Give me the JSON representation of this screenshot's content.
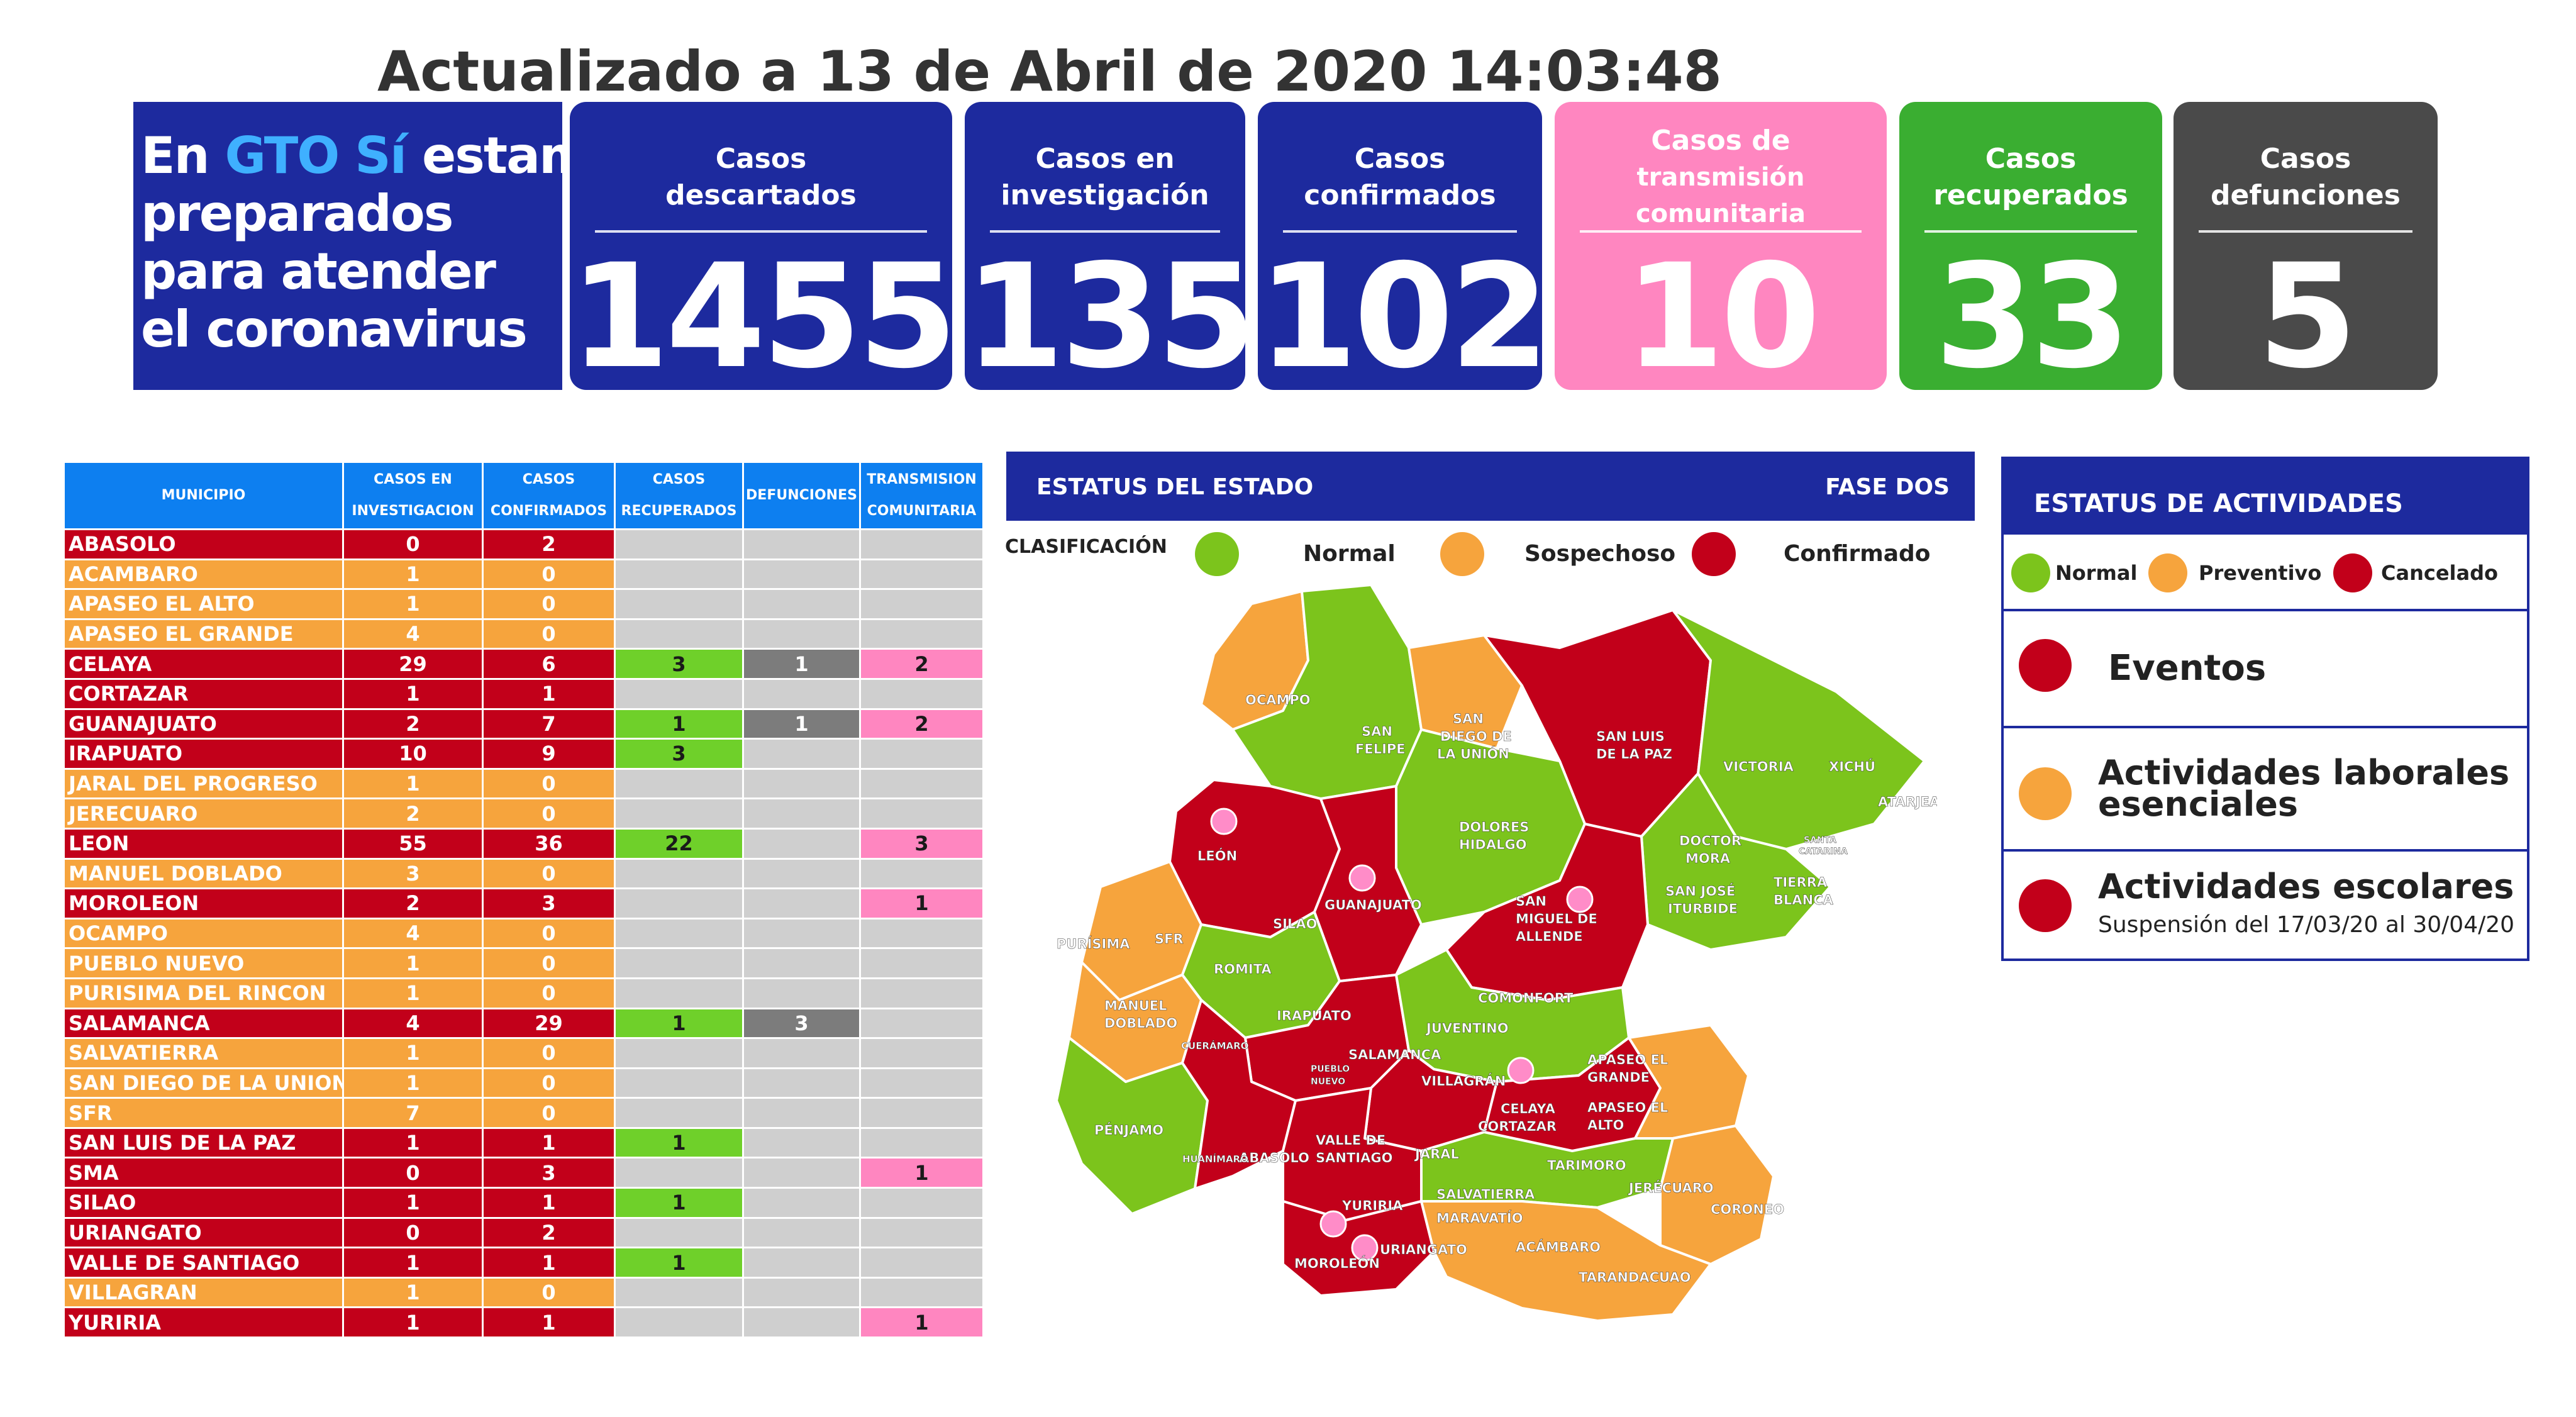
{
  "header": {
    "updated": "Actualizado a 13 de Abril de 2020 14:03:48"
  },
  "slogan": {
    "line1a": "En ",
    "line1b": "GTO Sí",
    "line1c": " estamos",
    "line2": "preparados",
    "line3": "para atender",
    "line4": "el coronavirus"
  },
  "colors": {
    "navy": "#1d2a9e",
    "pink": "#ff86c0",
    "green": "#3aae31",
    "dark": "#4a4a4a",
    "red": "#c2001a",
    "orange": "#f6a43d",
    "lightgreen": "#7cc41c"
  },
  "cards": [
    {
      "label1": "Casos",
      "label2": "descartados",
      "value": "1455"
    },
    {
      "label1": "Casos en",
      "label2": "investigación",
      "value": "135"
    },
    {
      "label1": "Casos",
      "label2": "confirmados",
      "value": "102"
    },
    {
      "label1": "Casos de",
      "label2": "transmisión comunitaria",
      "value": "10"
    },
    {
      "label1": "Casos",
      "label2": "recuperados",
      "value": "33"
    },
    {
      "label1": "Casos",
      "label2": "defunciones",
      "value": "5"
    }
  ],
  "table": {
    "headers": {
      "municipio": "MUNICIPIO",
      "inv1": "CASOS EN",
      "inv2": "INVESTIGACION",
      "conf1": "CASOS",
      "conf2": "CONFIRMADOS",
      "rec1": "CASOS",
      "rec2": "RECUPERADOS",
      "def": "DEFUNCIONES",
      "tra1": "TRANSMISION",
      "tra2": "COMUNITARIA"
    },
    "rows": [
      {
        "mun": "ABASOLO",
        "inv": "0",
        "conf": "2",
        "rec": "",
        "def": "",
        "tra": "",
        "status": "red"
      },
      {
        "mun": "ACAMBARO",
        "inv": "1",
        "conf": "0",
        "rec": "",
        "def": "",
        "tra": "",
        "status": "orange"
      },
      {
        "mun": "APASEO EL ALTO",
        "inv": "1",
        "conf": "0",
        "rec": "",
        "def": "",
        "tra": "",
        "status": "orange"
      },
      {
        "mun": "APASEO EL GRANDE",
        "inv": "4",
        "conf": "0",
        "rec": "",
        "def": "",
        "tra": "",
        "status": "orange"
      },
      {
        "mun": "CELAYA",
        "inv": "29",
        "conf": "6",
        "rec": "3",
        "def": "1",
        "tra": "2",
        "status": "red"
      },
      {
        "mun": "CORTAZAR",
        "inv": "1",
        "conf": "1",
        "rec": "",
        "def": "",
        "tra": "",
        "status": "red"
      },
      {
        "mun": "GUANAJUATO",
        "inv": "2",
        "conf": "7",
        "rec": "1",
        "def": "1",
        "tra": "2",
        "status": "red"
      },
      {
        "mun": "IRAPUATO",
        "inv": "10",
        "conf": "9",
        "rec": "3",
        "def": "",
        "tra": "",
        "status": "red"
      },
      {
        "mun": "JARAL DEL PROGRESO",
        "inv": "1",
        "conf": "0",
        "rec": "",
        "def": "",
        "tra": "",
        "status": "orange"
      },
      {
        "mun": "JERECUARO",
        "inv": "2",
        "conf": "0",
        "rec": "",
        "def": "",
        "tra": "",
        "status": "orange"
      },
      {
        "mun": "LEON",
        "inv": "55",
        "conf": "36",
        "rec": "22",
        "def": "",
        "tra": "3",
        "status": "red"
      },
      {
        "mun": "MANUEL DOBLADO",
        "inv": "3",
        "conf": "0",
        "rec": "",
        "def": "",
        "tra": "",
        "status": "orange"
      },
      {
        "mun": "MOROLEON",
        "inv": "2",
        "conf": "3",
        "rec": "",
        "def": "",
        "tra": "1",
        "status": "red"
      },
      {
        "mun": "OCAMPO",
        "inv": "4",
        "conf": "0",
        "rec": "",
        "def": "",
        "tra": "",
        "status": "orange"
      },
      {
        "mun": "PUEBLO NUEVO",
        "inv": "1",
        "conf": "0",
        "rec": "",
        "def": "",
        "tra": "",
        "status": "orange"
      },
      {
        "mun": "PURISIMA DEL RINCON",
        "inv": "1",
        "conf": "0",
        "rec": "",
        "def": "",
        "tra": "",
        "status": "orange"
      },
      {
        "mun": "SALAMANCA",
        "inv": "4",
        "conf": "29",
        "rec": "1",
        "def": "3",
        "tra": "",
        "status": "red"
      },
      {
        "mun": "SALVATIERRA",
        "inv": "1",
        "conf": "0",
        "rec": "",
        "def": "",
        "tra": "",
        "status": "orange"
      },
      {
        "mun": "SAN DIEGO DE LA UNION",
        "inv": "1",
        "conf": "0",
        "rec": "",
        "def": "",
        "tra": "",
        "status": "orange"
      },
      {
        "mun": "SFR",
        "inv": "7",
        "conf": "0",
        "rec": "",
        "def": "",
        "tra": "",
        "status": "orange"
      },
      {
        "mun": "SAN LUIS DE LA PAZ",
        "inv": "1",
        "conf": "1",
        "rec": "1",
        "def": "",
        "tra": "",
        "status": "red"
      },
      {
        "mun": "SMA",
        "inv": "0",
        "conf": "3",
        "rec": "",
        "def": "",
        "tra": "1",
        "status": "red"
      },
      {
        "mun": "SILAO",
        "inv": "1",
        "conf": "1",
        "rec": "1",
        "def": "",
        "tra": "",
        "status": "red"
      },
      {
        "mun": "URIANGATO",
        "inv": "0",
        "conf": "2",
        "rec": "",
        "def": "",
        "tra": "",
        "status": "red"
      },
      {
        "mun": "VALLE DE SANTIAGO",
        "inv": "1",
        "conf": "1",
        "rec": "1",
        "def": "",
        "tra": "",
        "status": "red"
      },
      {
        "mun": "VILLAGRAN",
        "inv": "1",
        "conf": "0",
        "rec": "",
        "def": "",
        "tra": "",
        "status": "orange"
      },
      {
        "mun": "YURIRIA",
        "inv": "1",
        "conf": "1",
        "rec": "",
        "def": "",
        "tra": "1",
        "status": "red"
      }
    ]
  },
  "map": {
    "title": "ESTATUS DEL ESTADO",
    "phase": "FASE DOS",
    "classification": "CLASIFICACIÓN",
    "legend": [
      "Normal",
      "Sospechoso",
      "Confirmado"
    ],
    "labels": {
      "ocampo": "OCAMPO",
      "san_felipe_1": "SAN",
      "san_felipe_2": "FELIPE",
      "sdu_1": "SAN",
      "sdu_2": "DIEGO DE",
      "sdu_3": "LA UNIÓN",
      "slp_1": "SAN LUIS",
      "slp_2": "DE LA PAZ",
      "victoria": "VICTORIA",
      "xichu": "XICHÚ",
      "atarjea": "ATARJEA",
      "dolores_1": "DOLORES",
      "dolores_2": "HIDALGO",
      "leon": "LEÓN",
      "guanajuato": "GUANAJUATO",
      "silao": "SILAO",
      "sma_1": "SAN",
      "sma_2": "MIGUEL DE",
      "sma_3": "ALLENDE",
      "dm_1": "DOCTOR",
      "dm_2": "MORA",
      "sji_1": "SAN JOSÉ",
      "sji_2": "ITURBIDE",
      "tb_1": "TIERRA",
      "tb_2": "BLANCA",
      "sc_1": "SANTA",
      "sc_2": "CATARINA",
      "purisima": "PURÍSIMA",
      "sfr": "SFR",
      "romita": "ROMITA",
      "md_1": "MANUEL",
      "md_2": "DOBLADO",
      "cueramaro": "CUERÁMARO",
      "irapuato": "IRAPUATO",
      "comonfort": "COMONFORT",
      "juventino": "JUVENTINO",
      "salamanca": "SALAMANCA",
      "pn_1": "PUEBLO",
      "pn_2": "NUEVO",
      "villagran": "VILLAGRÁN",
      "celaya": "CELAYA",
      "aeg_1": "APASEO EL",
      "aeg_2": "GRANDE",
      "aea_1": "APASEO EL",
      "aea_2": "ALTO",
      "penjamo": "PÉNJAMO",
      "abasolo": "ABASOLO",
      "huanimaro": "HUANÍMARO",
      "vs_1": "VALLE DE",
      "vs_2": "SANTIAGO",
      "jaral": "JARAL",
      "cortazar": "CORTAZAR",
      "tarimoro": "TARIMORO",
      "jerecuaro": "JERÉCUARO",
      "coroneo": "CORONEO",
      "yuriria": "YURIRIA",
      "salvatierra": "SALVATIERRA",
      "maravatio": "MARAVATÍO",
      "moroleon": "MOROLEÓN",
      "uriangato": "URIANGATO",
      "acambaro": "ACÁMBARO",
      "tarandacuao": "TARANDACUAO"
    }
  },
  "activities": {
    "title": "ESTATUS DE ACTIVIDADES",
    "legend": [
      "Normal",
      "Preventivo",
      "Cancelado"
    ],
    "rows": [
      {
        "line1": "Eventos",
        "line2": "",
        "status": "red"
      },
      {
        "line1": "Actividades laborales",
        "line2": "esenciales",
        "status": "orange"
      },
      {
        "line1": "Actividades escolares",
        "line2": "Suspensión del 17/03/20 al 30/04/20",
        "status": "red"
      }
    ]
  }
}
